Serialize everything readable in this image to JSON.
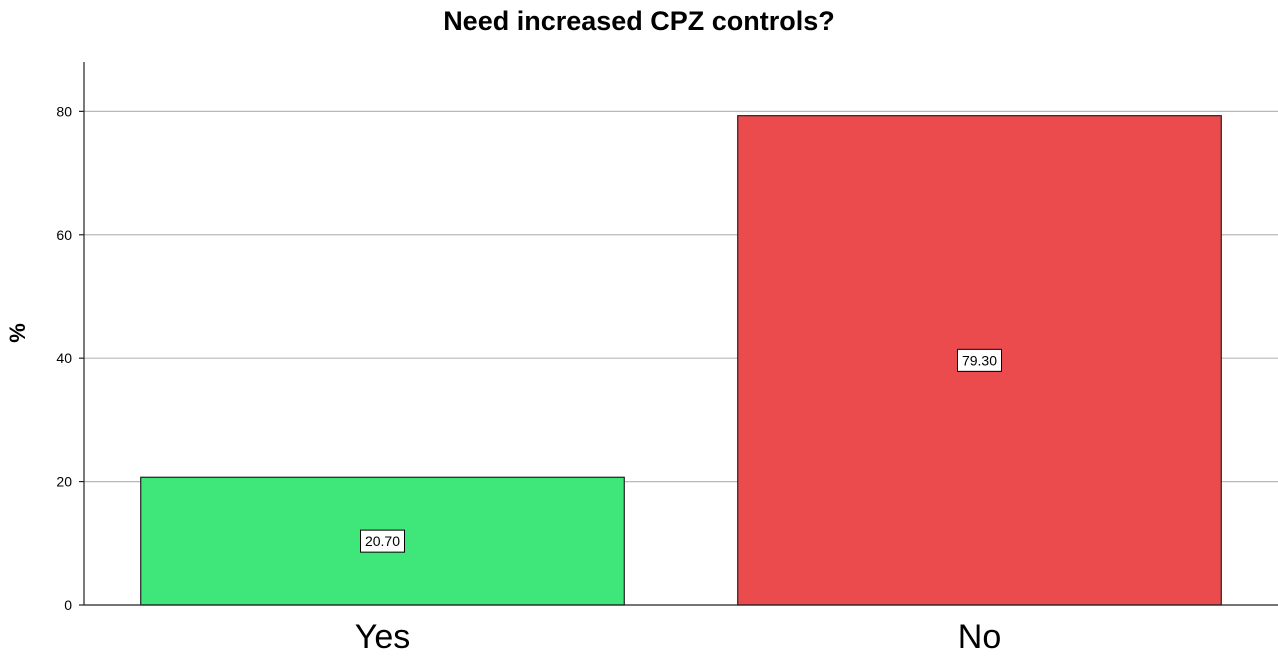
{
  "chart_data": {
    "type": "bar",
    "title": "Need increased CPZ controls?",
    "xlabel": "",
    "ylabel": "%",
    "categories": [
      "Yes",
      "No"
    ],
    "values": [
      20.7,
      79.3
    ],
    "value_labels": [
      "20.70",
      "79.30"
    ],
    "bar_colors": [
      "#3fe67a",
      "#ec4b4e"
    ],
    "ylim": [
      0,
      88
    ],
    "yticks": [
      0,
      20,
      40,
      60,
      80
    ],
    "ytick_labels": [
      "0",
      "20",
      "40",
      "60",
      "80"
    ],
    "grid": true,
    "legend": "none"
  },
  "colors": {
    "grid": "#b8b8b8",
    "axis": "#222222",
    "bar_stroke": "#222222",
    "background": "#ffffff"
  }
}
